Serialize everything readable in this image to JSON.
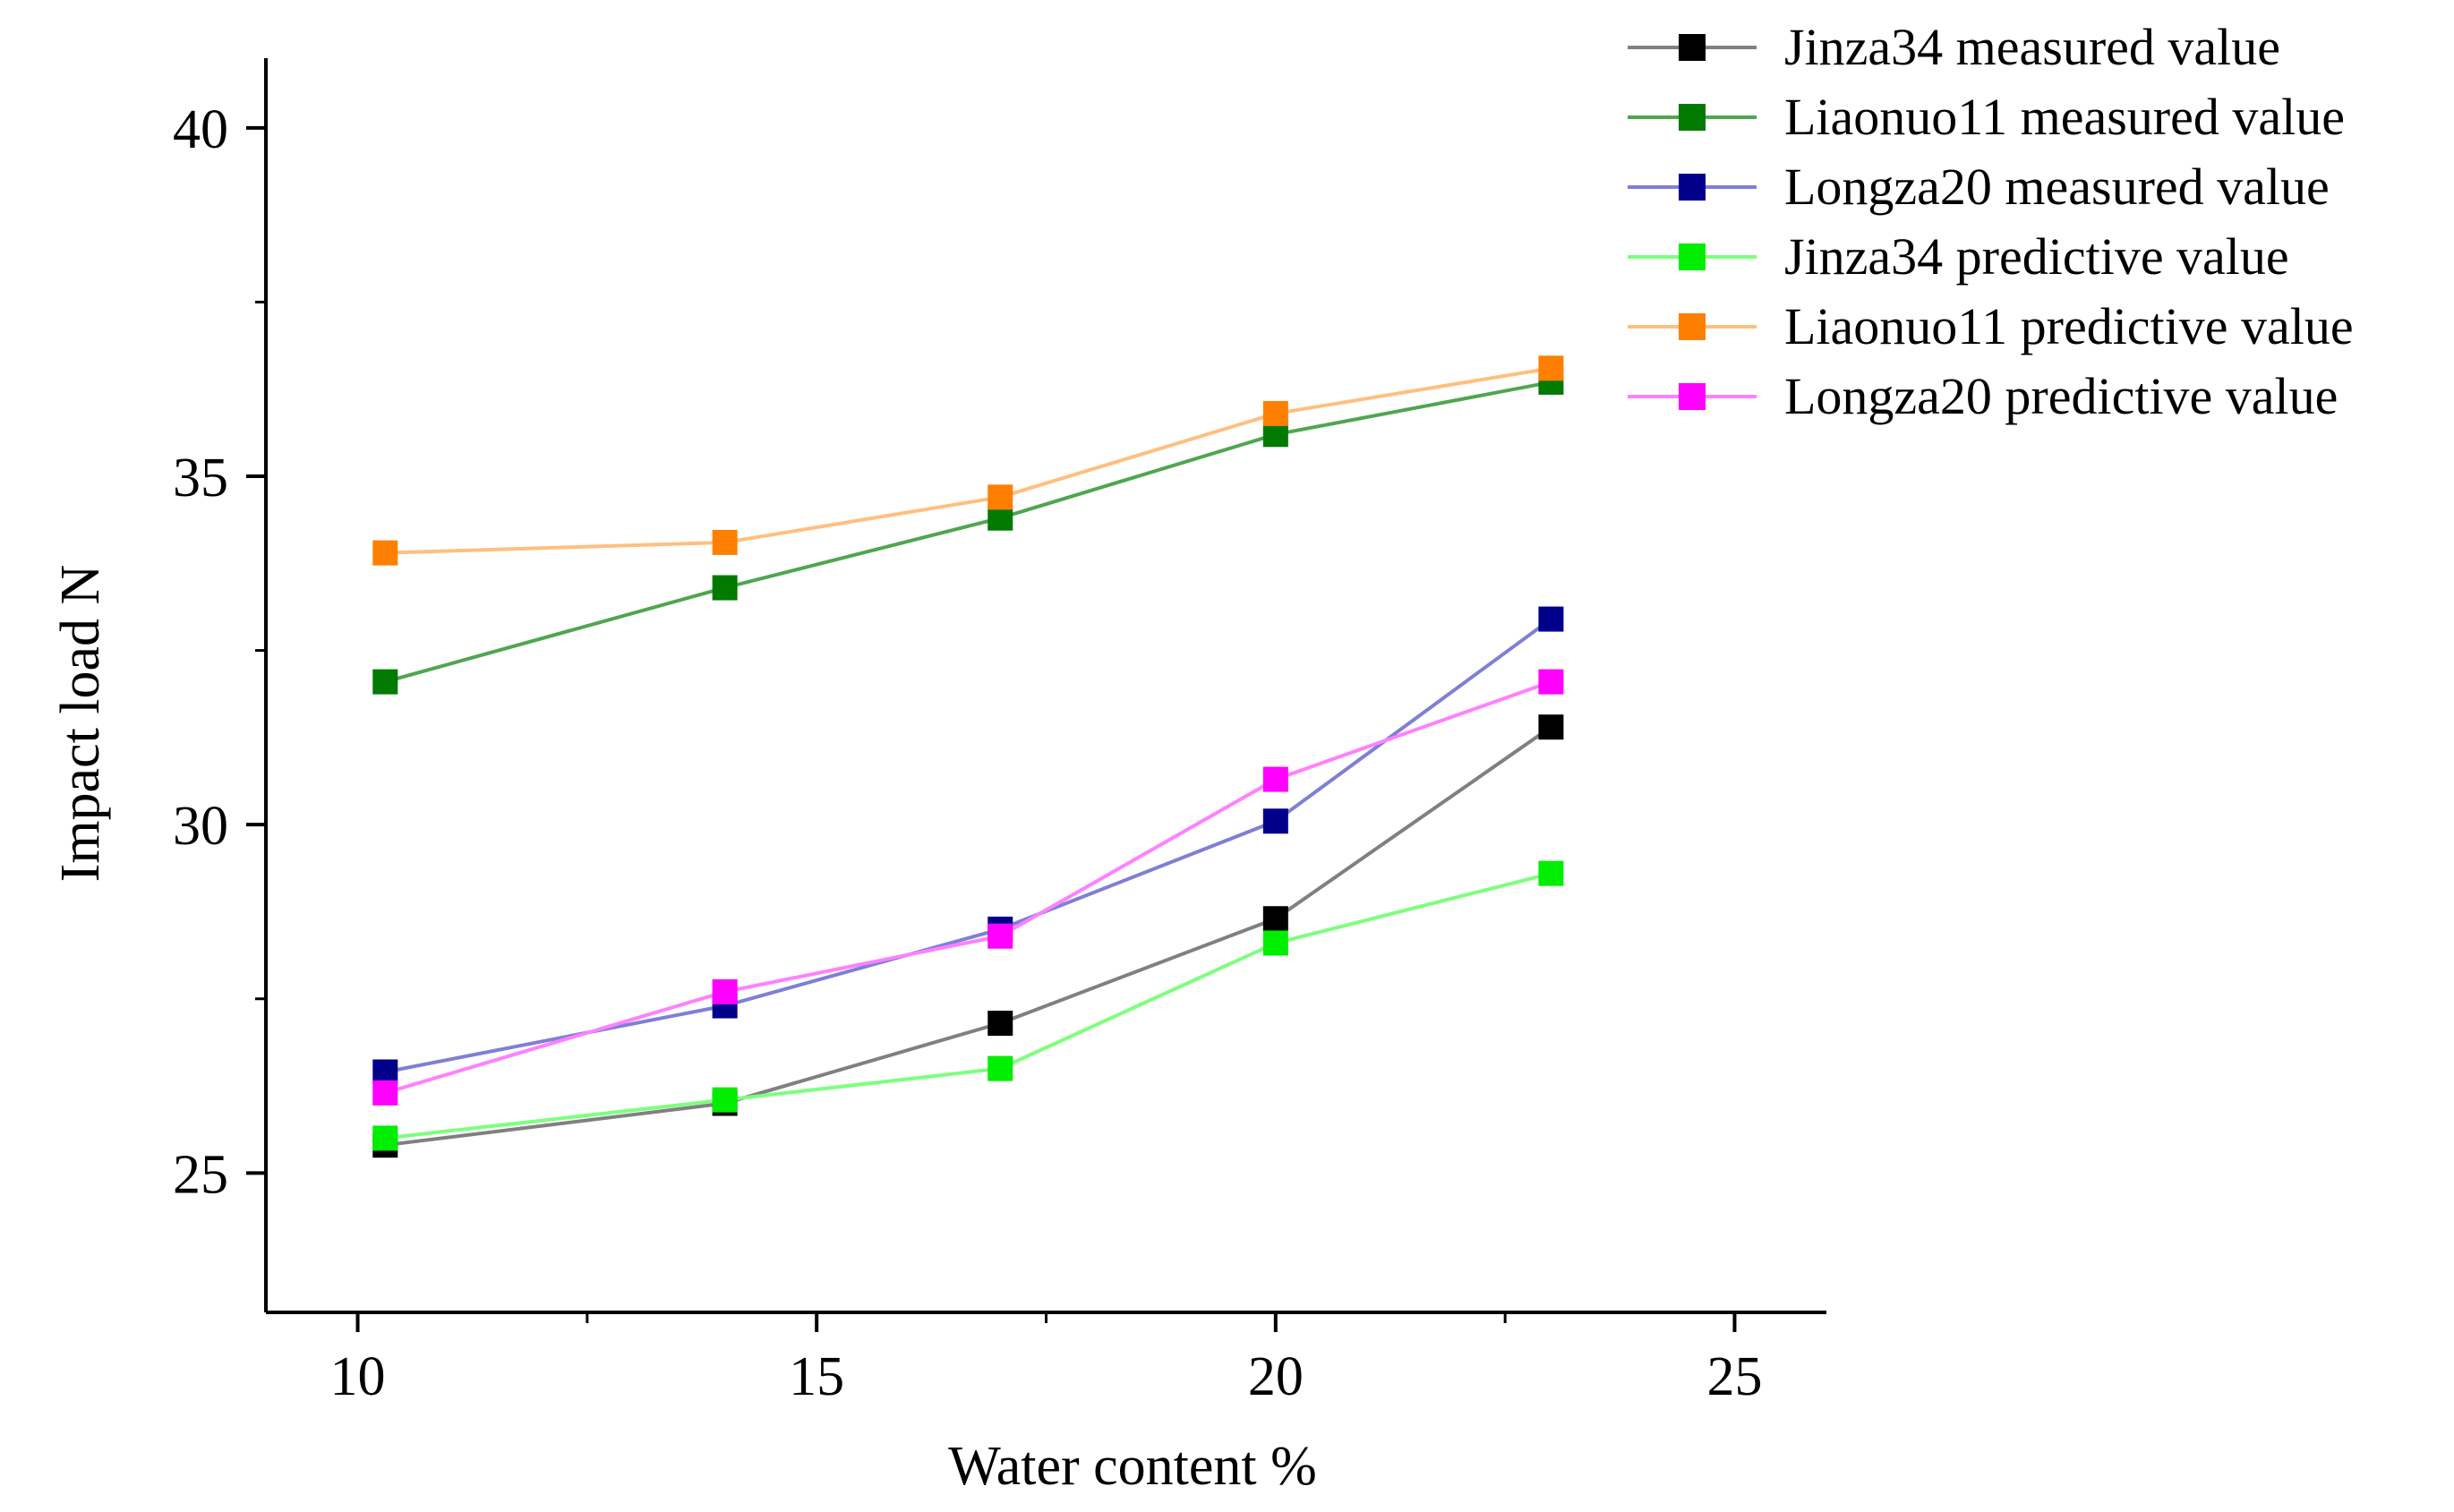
{
  "chart_data": {
    "type": "line",
    "title": "",
    "xlabel": "Water content  %",
    "ylabel": "Impact load  N",
    "xlim": [
      9,
      26
    ],
    "ylim": [
      23,
      41
    ],
    "xticks": [
      10,
      15,
      20,
      25
    ],
    "yticks": [
      25,
      30,
      35,
      40
    ],
    "grid": false,
    "legend_position": "top-right",
    "x": [
      10.3,
      14,
      17,
      20,
      23
    ],
    "series": [
      {
        "name": "Jinza34 measured value",
        "color": "#000000",
        "line_color": "#808080",
        "values": [
          25.4,
          26.0,
          27.15,
          28.65,
          31.4
        ]
      },
      {
        "name": "Liaonuo11 measured value",
        "color": "#007a00",
        "line_color": "#4fa64f",
        "values": [
          32.05,
          33.4,
          34.4,
          35.6,
          36.35
        ]
      },
      {
        "name": "Longza20 measured value",
        "color": "#00008b",
        "line_color": "#7f7fd6",
        "values": [
          26.45,
          27.4,
          28.5,
          30.05,
          32.95
        ]
      },
      {
        "name": "Jinza34 predictive value",
        "color": "#00ee00",
        "line_color": "#7dff7d",
        "values": [
          25.5,
          26.05,
          26.5,
          28.3,
          29.3
        ]
      },
      {
        "name": "Liaonuo11 predictive value",
        "color": "#ff7f00",
        "line_color": "#ffbf7f",
        "values": [
          33.9,
          34.05,
          34.7,
          35.9,
          36.55
        ]
      },
      {
        "name": "Longza20 predictive value",
        "color": "#ff00ff",
        "line_color": "#ff80ff",
        "values": [
          26.15,
          27.6,
          28.4,
          30.65,
          32.05
        ]
      }
    ]
  }
}
